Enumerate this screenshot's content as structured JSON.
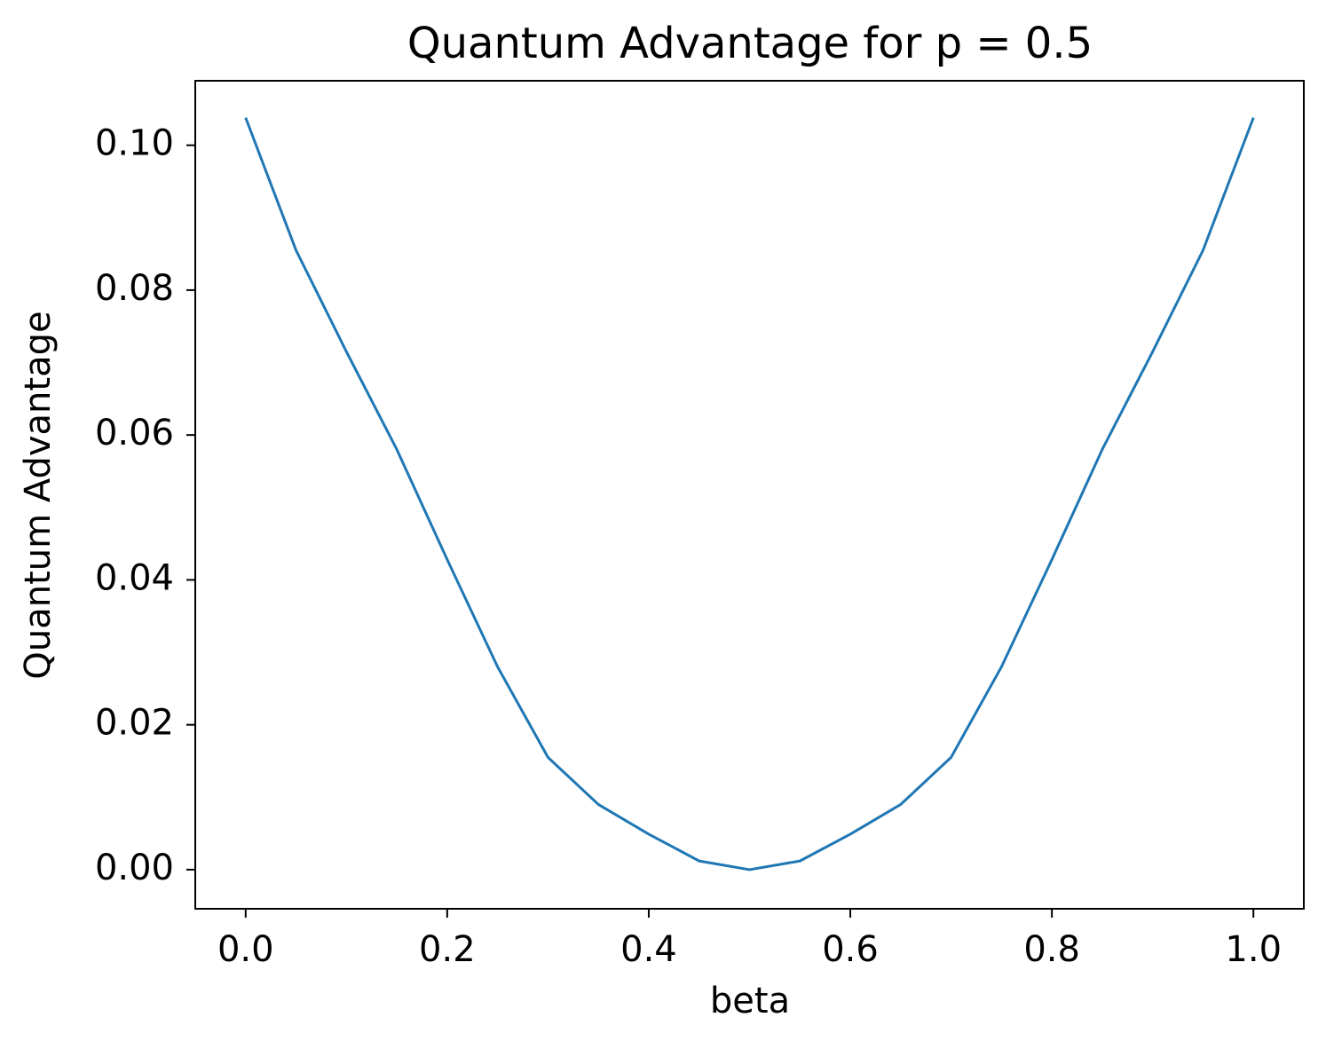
{
  "chart_data": {
    "type": "line",
    "title": "Quantum Advantage for p = 0.5",
    "x_label": "beta",
    "y_label": "Quantum Advantage",
    "x": [
      0.0,
      0.05,
      0.1,
      0.15,
      0.2,
      0.25,
      0.3,
      0.35,
      0.4,
      0.45,
      0.5,
      0.55,
      0.6,
      0.65,
      0.7,
      0.75,
      0.8,
      0.85,
      0.9,
      0.95,
      1.0
    ],
    "series": [
      {
        "color": "#1f77b4",
        "values": [
          0.1038,
          0.0855,
          0.0715,
          0.058,
          0.0428,
          0.028,
          0.0155,
          0.009,
          0.0049,
          0.0012,
          0.0,
          0.0012,
          0.0049,
          0.009,
          0.0155,
          0.028,
          0.0428,
          0.058,
          0.0715,
          0.0855,
          0.1038
        ]
      }
    ],
    "xlim": [
      -0.05,
      1.05
    ],
    "ylim": [
      -0.0054,
      0.1089
    ],
    "xticks": [
      {
        "value": 0,
        "label": "0.0"
      },
      0.2,
      0.4,
      0.6,
      0.8,
      {
        "value": 1,
        "label": "1.0"
      }
    ],
    "yticks": [
      {
        "value": 0,
        "label": "0.00"
      },
      {
        "value": 0.02,
        "label": "0.02"
      },
      {
        "value": 0.04,
        "label": "0.04"
      },
      {
        "value": 0.06,
        "label": "0.06"
      },
      {
        "value": 0.08,
        "label": "0.08"
      },
      {
        "value": 0.1,
        "label": "0.10"
      }
    ]
  }
}
